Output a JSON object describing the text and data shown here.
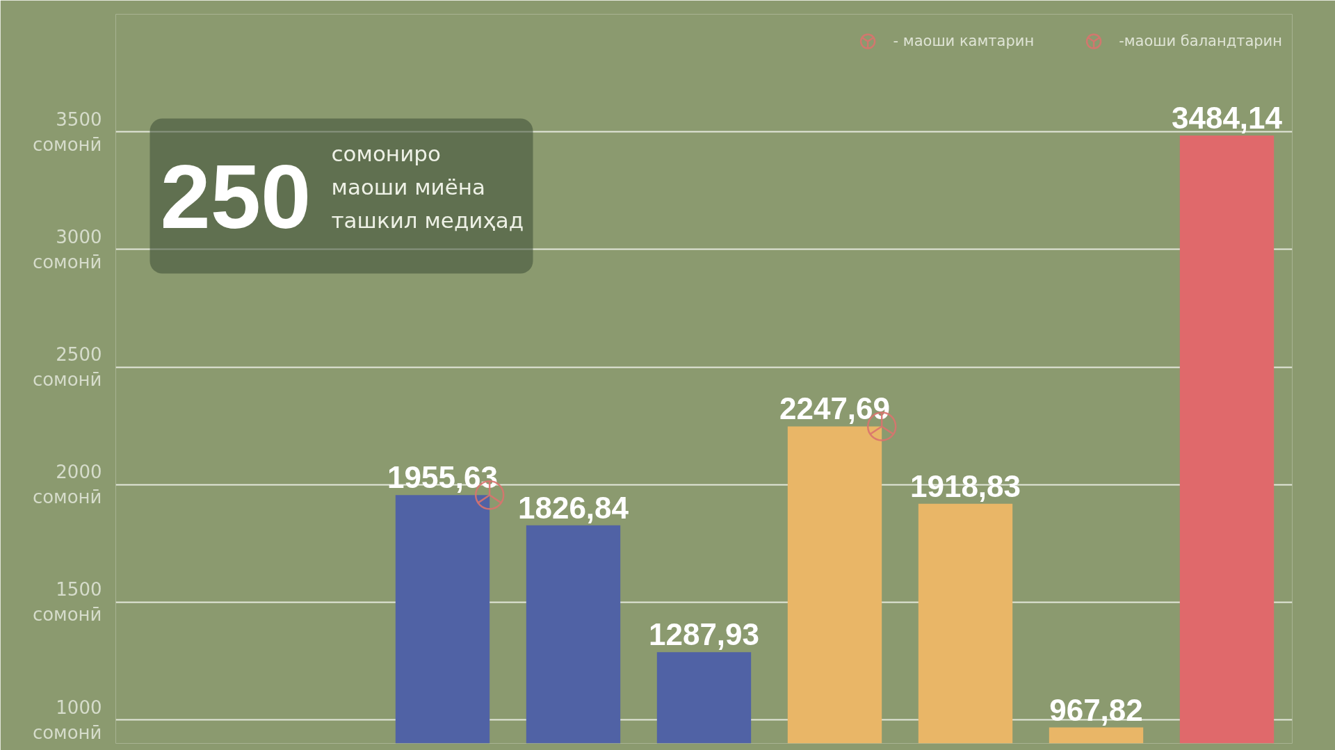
{
  "chart_data": {
    "type": "bar",
    "categories": [
      null,
      null,
      null,
      null,
      null,
      null,
      null,
      null,
      null
    ],
    "series": [
      {
        "values": [
          null,
          null,
          1955.63,
          1826.84,
          1287.93,
          2247.69,
          1918.83,
          967.82,
          3484.14
        ],
        "colors": [
          null,
          null,
          "#5062a5",
          "#5062a5",
          "#5062a5",
          "#e9b667",
          "#e9b667",
          "#e9b667",
          "#e0696b"
        ],
        "value_labels": [
          null,
          null,
          "1955,63",
          "1826,84",
          "1287,93",
          "2247,69",
          "1918,83",
          "967,82",
          "3484,14"
        ]
      },
      {
        "type": "scatter",
        "name": "- маоши камтарин",
        "color": "#d9736e",
        "marker": "circle",
        "values": [
          null,
          null,
          null,
          null,
          null,
          null,
          null,
          null,
          null
        ]
      },
      {
        "type": "scatter",
        "name": "-маоши баландтарин",
        "color": "#d9736e",
        "marker": "circle",
        "values": [
          null,
          null,
          1955.63,
          null,
          null,
          2247.69,
          null,
          null,
          null
        ]
      }
    ],
    "ylim": [
      900,
      4000
    ],
    "yticks": [
      {
        "value": 1000,
        "label": "1000\nсомонӣ"
      },
      {
        "value": 1500,
        "label": "1500\nсомонӣ"
      },
      {
        "value": 2000,
        "label": "2000\nсомонӣ"
      },
      {
        "value": 2500,
        "label": "2500\nсомонӣ"
      },
      {
        "value": 3000,
        "label": "3000\nсомонӣ"
      },
      {
        "value": 3500,
        "label": "3500\nсомонӣ"
      }
    ],
    "grid": "y",
    "legend": "top right",
    "tick_labels": "y",
    "annotations": [
      "250",
      "сомониро\nмаоши миёна\nташкил медиҳад"
    ]
  }
}
